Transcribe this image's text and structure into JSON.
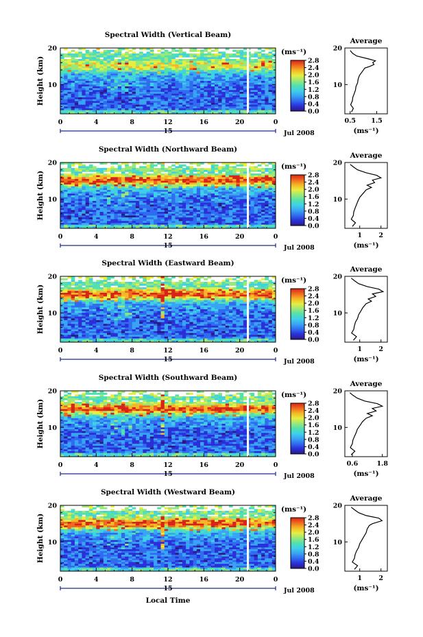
{
  "figure": {
    "xlabel_bottom": "Local Time",
    "day_label": "15",
    "month_label": "Jul 2008",
    "ylabel": "Height (km)",
    "cbar_unit": "(ms⁻¹)",
    "avg_title": "Average",
    "avg_xunit": "(ms⁻¹)"
  },
  "colors": {
    "scale": [
      "#2a1a80",
      "#2b2fd8",
      "#2f6cf0",
      "#3aa4f4",
      "#3fd0e8",
      "#52e0b0",
      "#9ae878",
      "#e6ee40",
      "#f6b826",
      "#f06a1e",
      "#d82418"
    ],
    "background": "#ffffff"
  },
  "chart_data": [
    {
      "type": "heatmap",
      "title": "Spectral Width (Vertical Beam)",
      "xlabel": "Local Time",
      "ylabel": "Height (km)",
      "xlim": [
        0,
        24
      ],
      "ylim": [
        2,
        20
      ],
      "x_ticks": [
        "0",
        "4",
        "8",
        "12",
        "16",
        "20",
        "0"
      ],
      "y_ticks": [
        "10",
        "20"
      ],
      "colorbar": {
        "label": "(ms⁻¹)",
        "ticks": [
          "0.0",
          "0.4",
          "0.8",
          "1.2",
          "1.6",
          "2.0",
          "2.4",
          "2.8"
        ],
        "range": [
          0,
          2.8
        ]
      },
      "average_profile": {
        "title": "Average",
        "xlabel": "(ms⁻¹)",
        "x_ticks": [
          "0.5",
          "1.5"
        ],
        "xlim": [
          0.3,
          1.9
        ],
        "ylim": [
          2,
          20
        ],
        "points": [
          [
            0.55,
            2.5
          ],
          [
            0.62,
            3.5
          ],
          [
            0.52,
            4.5
          ],
          [
            0.58,
            5.5
          ],
          [
            0.6,
            6.5
          ],
          [
            0.65,
            7.5
          ],
          [
            0.7,
            8.5
          ],
          [
            0.72,
            9.5
          ],
          [
            0.78,
            10.5
          ],
          [
            0.8,
            11.5
          ],
          [
            0.85,
            12.5
          ],
          [
            0.95,
            13.5
          ],
          [
            1.05,
            14.5
          ],
          [
            1.25,
            15.0
          ],
          [
            1.4,
            15.5
          ],
          [
            1.35,
            16.0
          ],
          [
            1.45,
            16.5
          ],
          [
            1.2,
            17.0
          ],
          [
            0.75,
            17.8
          ],
          [
            0.6,
            18.5
          ],
          [
            0.5,
            19.3
          ]
        ]
      }
    },
    {
      "type": "heatmap",
      "title": "Spectral Width (Northward Beam)",
      "xlabel": "Local Time",
      "ylabel": "Height (km)",
      "xlim": [
        0,
        24
      ],
      "ylim": [
        2,
        20
      ],
      "x_ticks": [
        "0",
        "4",
        "8",
        "12",
        "16",
        "20",
        "0"
      ],
      "y_ticks": [
        "10",
        "20"
      ],
      "colorbar": {
        "label": "(ms⁻¹)",
        "ticks": [
          "0.0",
          "0.4",
          "0.8",
          "1.2",
          "1.6",
          "2.0",
          "2.4",
          "2.8"
        ],
        "range": [
          0,
          2.8
        ]
      },
      "average_profile": {
        "title": "Average",
        "xlabel": "(ms⁻¹)",
        "x_ticks": [
          "1",
          "2"
        ],
        "xlim": [
          0.3,
          2.3
        ],
        "ylim": [
          2,
          20
        ],
        "points": [
          [
            0.65,
            2.5
          ],
          [
            0.8,
            3.5
          ],
          [
            0.6,
            4.5
          ],
          [
            0.7,
            5.5
          ],
          [
            0.72,
            6.5
          ],
          [
            0.78,
            7.5
          ],
          [
            0.85,
            8.5
          ],
          [
            0.92,
            9.5
          ],
          [
            1.0,
            10.5
          ],
          [
            1.15,
            11.5
          ],
          [
            1.3,
            12.5
          ],
          [
            1.55,
            13.2
          ],
          [
            1.35,
            13.8
          ],
          [
            1.7,
            14.5
          ],
          [
            1.6,
            15.2
          ],
          [
            2.0,
            15.8
          ],
          [
            1.8,
            16.5
          ],
          [
            1.3,
            17.2
          ],
          [
            0.9,
            18.0
          ],
          [
            0.7,
            18.8
          ],
          [
            0.55,
            19.5
          ]
        ]
      }
    },
    {
      "type": "heatmap",
      "title": "Spectral Width (Eastward Beam)",
      "xlabel": "Local Time",
      "ylabel": "Height (km)",
      "xlim": [
        0,
        24
      ],
      "ylim": [
        2,
        20
      ],
      "x_ticks": [
        "0",
        "4",
        "8",
        "12",
        "16",
        "20",
        "0"
      ],
      "y_ticks": [
        "10",
        "20"
      ],
      "colorbar": {
        "label": "(ms⁻¹)",
        "ticks": [
          "0.0",
          "0.4",
          "0.8",
          "1.2",
          "1.6",
          "2.0",
          "2.4",
          "2.8"
        ],
        "range": [
          0,
          2.8
        ]
      },
      "average_profile": {
        "title": "Average",
        "xlabel": "(ms⁻¹)",
        "x_ticks": [
          "1",
          "2"
        ],
        "xlim": [
          0.3,
          2.3
        ],
        "ylim": [
          2,
          20
        ],
        "points": [
          [
            0.7,
            2.5
          ],
          [
            0.85,
            3.5
          ],
          [
            0.62,
            4.5
          ],
          [
            0.72,
            5.5
          ],
          [
            0.75,
            6.5
          ],
          [
            0.8,
            7.5
          ],
          [
            0.9,
            8.5
          ],
          [
            0.95,
            9.5
          ],
          [
            1.05,
            10.5
          ],
          [
            1.15,
            11.5
          ],
          [
            1.3,
            12.5
          ],
          [
            1.55,
            13.2
          ],
          [
            1.4,
            13.8
          ],
          [
            1.75,
            14.5
          ],
          [
            1.6,
            15.2
          ],
          [
            2.1,
            15.8
          ],
          [
            1.9,
            16.5
          ],
          [
            1.35,
            17.2
          ],
          [
            0.95,
            18.0
          ],
          [
            0.75,
            18.8
          ],
          [
            0.6,
            19.5
          ]
        ]
      }
    },
    {
      "type": "heatmap",
      "title": "Spectral Width (Southward Beam)",
      "xlabel": "Local Time",
      "ylabel": "Height (km)",
      "xlim": [
        0,
        24
      ],
      "ylim": [
        2,
        20
      ],
      "x_ticks": [
        "0",
        "4",
        "8",
        "12",
        "16",
        "20",
        "0"
      ],
      "y_ticks": [
        "10",
        "20"
      ],
      "colorbar": {
        "label": "(ms⁻¹)",
        "ticks": [
          "0.0",
          "0.4",
          "0.8",
          "1.2",
          "1.6",
          "2.0",
          "2.4",
          "2.8"
        ],
        "range": [
          0,
          2.8
        ]
      },
      "average_profile": {
        "title": "Average",
        "xlabel": "(ms⁻¹)",
        "x_ticks": [
          "0.6",
          "1.8"
        ],
        "xlim": [
          0.3,
          2.0
        ],
        "ylim": [
          2,
          20
        ],
        "points": [
          [
            0.55,
            2.5
          ],
          [
            0.7,
            3.5
          ],
          [
            0.52,
            4.5
          ],
          [
            0.6,
            5.5
          ],
          [
            0.62,
            6.5
          ],
          [
            0.68,
            7.5
          ],
          [
            0.75,
            8.5
          ],
          [
            0.8,
            9.5
          ],
          [
            0.9,
            10.5
          ],
          [
            1.0,
            11.5
          ],
          [
            1.15,
            12.5
          ],
          [
            1.4,
            13.2
          ],
          [
            1.2,
            13.8
          ],
          [
            1.55,
            14.5
          ],
          [
            1.4,
            15.2
          ],
          [
            1.8,
            15.8
          ],
          [
            1.6,
            16.5
          ],
          [
            1.1,
            17.2
          ],
          [
            0.8,
            18.0
          ],
          [
            0.62,
            18.8
          ],
          [
            0.5,
            19.5
          ]
        ]
      }
    },
    {
      "type": "heatmap",
      "title": "Spectral Width (Westward Beam)",
      "xlabel": "Local Time",
      "ylabel": "Height (km)",
      "xlim": [
        0,
        24
      ],
      "ylim": [
        2,
        20
      ],
      "x_ticks": [
        "0",
        "4",
        "8",
        "12",
        "16",
        "20",
        "0"
      ],
      "y_ticks": [
        "10",
        "20"
      ],
      "colorbar": {
        "label": "(ms⁻¹)",
        "ticks": [
          "0.0",
          "0.4",
          "0.8",
          "1.2",
          "1.6",
          "2.0",
          "2.4",
          "2.8"
        ],
        "range": [
          0,
          2.8
        ]
      },
      "average_profile": {
        "title": "Average",
        "xlabel": "(ms⁻¹)",
        "x_ticks": [
          "1",
          "2"
        ],
        "xlim": [
          0.3,
          2.3
        ],
        "ylim": [
          2,
          20
        ],
        "points": [
          [
            0.75,
            2.5
          ],
          [
            0.9,
            3.5
          ],
          [
            0.65,
            4.5
          ],
          [
            0.75,
            5.5
          ],
          [
            0.78,
            6.5
          ],
          [
            0.85,
            7.5
          ],
          [
            0.95,
            8.5
          ],
          [
            1.0,
            9.5
          ],
          [
            1.1,
            10.5
          ],
          [
            1.2,
            11.5
          ],
          [
            1.3,
            12.5
          ],
          [
            1.35,
            13.5
          ],
          [
            1.45,
            14.5
          ],
          [
            1.6,
            15.0
          ],
          [
            2.05,
            15.8
          ],
          [
            1.9,
            16.5
          ],
          [
            1.3,
            17.2
          ],
          [
            0.95,
            18.0
          ],
          [
            0.75,
            18.8
          ],
          [
            0.6,
            19.5
          ]
        ]
      }
    }
  ]
}
